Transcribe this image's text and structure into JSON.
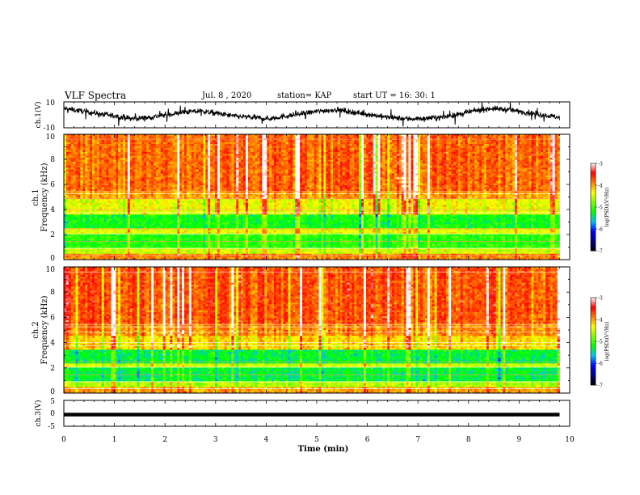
{
  "header": {
    "title": "VLF Spectra",
    "date": "Jul. 8 , 2020",
    "station": "station= KAP",
    "start_ut": "start UT = 16: 30: 1"
  },
  "colorbar": {
    "label": "log(PSD)(V²/Hz)",
    "ticks": [
      "-3",
      "-4",
      "-5",
      "-6",
      "-7"
    ],
    "colors": [
      "#ffffff",
      "#ff0000",
      "#ff8000",
      "#ffff00",
      "#80ff00",
      "#00ff00",
      "#00c0ff",
      "#0000ff",
      "#00008b",
      "#000000"
    ]
  },
  "chart_data": [
    {
      "id": "ch1-waveform",
      "type": "line",
      "ylabel": "ch.1(V)",
      "ylim": [
        -10,
        10
      ],
      "yticks": [
        "10",
        "-10"
      ],
      "xlim": [
        0,
        10
      ],
      "x_end_min": 9.8,
      "baseline_v": [
        5,
        3,
        1,
        -1,
        -3,
        -2,
        0,
        2,
        3,
        1,
        -1,
        -2,
        -3,
        -1,
        1,
        3,
        4,
        2,
        0,
        -2,
        -3,
        -3,
        -2,
        0,
        3,
        5,
        4,
        2,
        0,
        -2
      ]
    },
    {
      "id": "ch1-spectrogram",
      "type": "heatmap",
      "ylabel": "ch.1\nFrequency (kHz)",
      "ylim": [
        0,
        10
      ],
      "yticks": [
        "0",
        "2",
        "4",
        "6",
        "8",
        "10"
      ],
      "xlim": [
        0,
        10
      ],
      "x_end_min": 9.8,
      "psd_range": [
        -7,
        -3
      ],
      "band_profile": [
        {
          "f": [
            0.0,
            0.4
          ],
          "log_psd": -3.9
        },
        {
          "f": [
            0.4,
            1.0
          ],
          "log_psd": -4.5
        },
        {
          "f": [
            1.0,
            2.0
          ],
          "log_psd": -5.1
        },
        {
          "f": [
            2.0,
            2.5
          ],
          "log_psd": -4.4
        },
        {
          "f": [
            2.5,
            3.6
          ],
          "log_psd": -5.2
        },
        {
          "f": [
            3.6,
            4.8
          ],
          "log_psd": -4.4
        },
        {
          "f": [
            4.8,
            5.5
          ],
          "log_psd": -4.0
        },
        {
          "f": [
            5.5,
            10.0
          ],
          "log_psd": -3.8
        }
      ]
    },
    {
      "id": "ch2-spectrogram",
      "type": "heatmap",
      "ylabel": "ch.2\nFrequency (kHz)",
      "ylim": [
        0,
        10
      ],
      "yticks": [
        "0",
        "2",
        "4",
        "6",
        "8",
        "10"
      ],
      "xlim": [
        0,
        10
      ],
      "x_end_min": 9.8,
      "psd_range": [
        -7,
        -3
      ],
      "band_profile": [
        {
          "f": [
            0.0,
            0.4
          ],
          "log_psd": -4.0
        },
        {
          "f": [
            0.4,
            1.0
          ],
          "log_psd": -4.6
        },
        {
          "f": [
            1.0,
            2.0
          ],
          "log_psd": -5.3
        },
        {
          "f": [
            2.0,
            2.4
          ],
          "log_psd": -4.5
        },
        {
          "f": [
            2.4,
            3.4
          ],
          "log_psd": -5.3
        },
        {
          "f": [
            3.4,
            4.6
          ],
          "log_psd": -4.2
        },
        {
          "f": [
            4.6,
            5.5
          ],
          "log_psd": -3.9
        },
        {
          "f": [
            5.5,
            10.0
          ],
          "log_psd": -3.7
        }
      ]
    },
    {
      "id": "ch3-waveform",
      "type": "line",
      "ylabel": "ch.3(V)",
      "ylim": [
        -5,
        5
      ],
      "yticks": [
        "5",
        "0",
        "-5"
      ],
      "xlim": [
        0,
        10
      ],
      "x_end_min": 9.8,
      "band_v": [
        -1.2,
        0.2
      ],
      "xlabel": "Time (min)",
      "xticks": [
        "0",
        "1",
        "2",
        "3",
        "4",
        "5",
        "6",
        "7",
        "8",
        "9",
        "10"
      ]
    }
  ]
}
